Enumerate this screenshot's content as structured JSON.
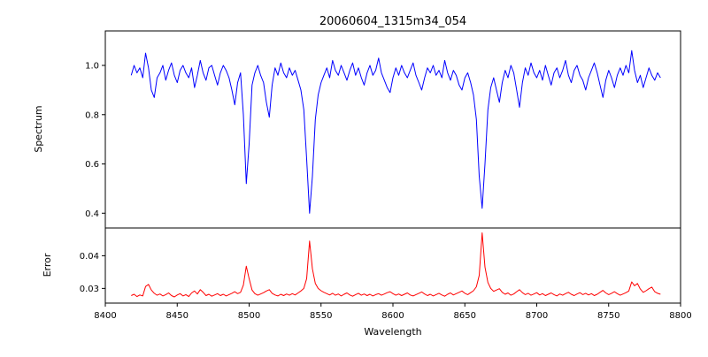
{
  "chart_data": {
    "type": "line",
    "title": "20060604_1315m34_054",
    "xlabel": "Wavelength",
    "grid": false,
    "legend": "none",
    "xlim": [
      8400,
      8800
    ],
    "xticks": [
      8400,
      8450,
      8500,
      8550,
      8600,
      8650,
      8700,
      8750,
      8800
    ],
    "xtick_labels": [
      "8400",
      "8450",
      "8500",
      "8550",
      "8600",
      "8650",
      "8700",
      "8750",
      "8800"
    ],
    "x": [
      8418,
      8420,
      8422,
      8424,
      8426,
      8428,
      8430,
      8432,
      8434,
      8436,
      8438,
      8440,
      8442,
      8444,
      8446,
      8448,
      8450,
      8452,
      8454,
      8456,
      8458,
      8460,
      8462,
      8464,
      8466,
      8468,
      8470,
      8472,
      8474,
      8476,
      8478,
      8480,
      8482,
      8484,
      8486,
      8488,
      8490,
      8492,
      8494,
      8496,
      8498,
      8500,
      8502,
      8504,
      8506,
      8508,
      8510,
      8512,
      8514,
      8516,
      8518,
      8520,
      8522,
      8524,
      8526,
      8528,
      8530,
      8532,
      8534,
      8536,
      8538,
      8540,
      8542,
      8544,
      8546,
      8548,
      8550,
      8552,
      8554,
      8556,
      8558,
      8560,
      8562,
      8564,
      8566,
      8568,
      8570,
      8572,
      8574,
      8576,
      8578,
      8580,
      8582,
      8584,
      8586,
      8588,
      8590,
      8592,
      8594,
      8596,
      8598,
      8600,
      8602,
      8604,
      8606,
      8608,
      8610,
      8612,
      8614,
      8616,
      8618,
      8620,
      8622,
      8624,
      8626,
      8628,
      8630,
      8632,
      8634,
      8636,
      8638,
      8640,
      8642,
      8644,
      8646,
      8648,
      8650,
      8652,
      8654,
      8656,
      8658,
      8660,
      8662,
      8664,
      8666,
      8668,
      8670,
      8672,
      8674,
      8676,
      8678,
      8680,
      8682,
      8684,
      8686,
      8688,
      8690,
      8692,
      8694,
      8696,
      8698,
      8700,
      8702,
      8704,
      8706,
      8708,
      8710,
      8712,
      8714,
      8716,
      8718,
      8720,
      8722,
      8724,
      8726,
      8728,
      8730,
      8732,
      8734,
      8736,
      8738,
      8740,
      8742,
      8744,
      8746,
      8748,
      8750,
      8752,
      8754,
      8756,
      8758,
      8760,
      8762,
      8764,
      8766,
      8768,
      8770,
      8772,
      8774,
      8776,
      8778,
      8780,
      8782,
      8784,
      8786
    ],
    "panels": [
      {
        "name": "spectrum",
        "ylabel": "Spectrum",
        "color": "#0000ff",
        "ylim": [
          0.34,
          1.14
        ],
        "yticks": [
          0.4,
          0.6,
          0.8,
          1.0
        ],
        "ytick_labels": [
          "0.4",
          "0.6",
          "0.8",
          "1.0"
        ],
        "absorption_lines": [
          8498,
          8542,
          8662
        ],
        "values": [
          0.96,
          1.0,
          0.97,
          0.99,
          0.95,
          1.05,
          0.99,
          0.9,
          0.87,
          0.95,
          0.97,
          1.0,
          0.94,
          0.98,
          1.01,
          0.96,
          0.93,
          0.98,
          1.0,
          0.97,
          0.95,
          0.99,
          0.91,
          0.96,
          1.02,
          0.97,
          0.94,
          0.99,
          1.0,
          0.96,
          0.92,
          0.97,
          1.0,
          0.98,
          0.95,
          0.9,
          0.84,
          0.93,
          0.97,
          0.8,
          0.52,
          0.68,
          0.92,
          0.97,
          1.0,
          0.96,
          0.93,
          0.85,
          0.79,
          0.92,
          0.99,
          0.96,
          1.01,
          0.97,
          0.95,
          0.99,
          0.96,
          0.98,
          0.94,
          0.9,
          0.82,
          0.62,
          0.4,
          0.55,
          0.78,
          0.88,
          0.93,
          0.96,
          0.99,
          0.95,
          1.02,
          0.98,
          0.96,
          1.0,
          0.97,
          0.94,
          0.98,
          1.01,
          0.96,
          0.99,
          0.95,
          0.92,
          0.97,
          1.0,
          0.96,
          0.98,
          1.03,
          0.97,
          0.94,
          0.91,
          0.89,
          0.95,
          0.99,
          0.96,
          1.0,
          0.97,
          0.95,
          0.98,
          1.01,
          0.96,
          0.93,
          0.9,
          0.95,
          0.99,
          0.97,
          1.0,
          0.96,
          0.98,
          0.95,
          1.02,
          0.97,
          0.94,
          0.98,
          0.96,
          0.92,
          0.9,
          0.95,
          0.97,
          0.93,
          0.88,
          0.78,
          0.55,
          0.42,
          0.6,
          0.82,
          0.91,
          0.95,
          0.9,
          0.85,
          0.93,
          0.98,
          0.95,
          1.0,
          0.97,
          0.9,
          0.83,
          0.93,
          0.99,
          0.96,
          1.01,
          0.97,
          0.95,
          0.98,
          0.94,
          1.0,
          0.96,
          0.92,
          0.97,
          0.99,
          0.95,
          0.98,
          1.02,
          0.96,
          0.93,
          0.98,
          1.0,
          0.96,
          0.94,
          0.9,
          0.95,
          0.98,
          1.01,
          0.97,
          0.92,
          0.87,
          0.94,
          0.98,
          0.95,
          0.91,
          0.96,
          0.99,
          0.96,
          1.0,
          0.97,
          1.06,
          0.98,
          0.93,
          0.96,
          0.91,
          0.95,
          0.99,
          0.96,
          0.94,
          0.97,
          0.95
        ]
      },
      {
        "name": "error",
        "ylabel": "Error",
        "color": "#ff0000",
        "ylim": [
          0.0255,
          0.0485
        ],
        "yticks": [
          0.03,
          0.04
        ],
        "ytick_labels": [
          "0.03",
          "0.04"
        ],
        "values": [
          0.0278,
          0.0282,
          0.0275,
          0.028,
          0.0277,
          0.0306,
          0.0312,
          0.0295,
          0.0285,
          0.0279,
          0.0283,
          0.0277,
          0.0281,
          0.0286,
          0.0278,
          0.0274,
          0.028,
          0.0284,
          0.0277,
          0.0281,
          0.0275,
          0.0286,
          0.0292,
          0.0283,
          0.0296,
          0.0288,
          0.0278,
          0.0282,
          0.0276,
          0.028,
          0.0284,
          0.0278,
          0.0282,
          0.0277,
          0.0281,
          0.0285,
          0.029,
          0.0284,
          0.0288,
          0.031,
          0.0368,
          0.033,
          0.0295,
          0.0284,
          0.0279,
          0.0283,
          0.0287,
          0.0292,
          0.0296,
          0.0285,
          0.028,
          0.0277,
          0.0282,
          0.0278,
          0.0283,
          0.0279,
          0.0284,
          0.028,
          0.0286,
          0.0292,
          0.03,
          0.033,
          0.0445,
          0.036,
          0.0315,
          0.03,
          0.0293,
          0.0288,
          0.0284,
          0.028,
          0.0285,
          0.0279,
          0.0283,
          0.0277,
          0.0282,
          0.0286,
          0.028,
          0.0276,
          0.0281,
          0.0285,
          0.0279,
          0.0283,
          0.0278,
          0.0282,
          0.0277,
          0.0281,
          0.0284,
          0.0279,
          0.0283,
          0.0287,
          0.029,
          0.0284,
          0.0279,
          0.0283,
          0.0278,
          0.0282,
          0.0286,
          0.028,
          0.0277,
          0.0281,
          0.0285,
          0.0289,
          0.0283,
          0.0278,
          0.0282,
          0.0277,
          0.0281,
          0.0285,
          0.028,
          0.0276,
          0.0282,
          0.0286,
          0.028,
          0.0284,
          0.0288,
          0.0292,
          0.0285,
          0.0281,
          0.0287,
          0.0293,
          0.0305,
          0.034,
          0.047,
          0.0365,
          0.0318,
          0.03,
          0.0291,
          0.0295,
          0.0299,
          0.0288,
          0.0282,
          0.0286,
          0.0279,
          0.0283,
          0.029,
          0.0296,
          0.0287,
          0.0281,
          0.0285,
          0.0279,
          0.0283,
          0.0287,
          0.028,
          0.0284,
          0.0278,
          0.0282,
          0.0286,
          0.0281,
          0.0277,
          0.0283,
          0.0279,
          0.0284,
          0.0288,
          0.0282,
          0.0278,
          0.0283,
          0.0287,
          0.0281,
          0.0285,
          0.028,
          0.0284,
          0.0278,
          0.0282,
          0.0288,
          0.0294,
          0.0286,
          0.0281,
          0.0285,
          0.029,
          0.0284,
          0.0279,
          0.0283,
          0.0287,
          0.0292,
          0.032,
          0.0308,
          0.0315,
          0.0298,
          0.0288,
          0.0293,
          0.0299,
          0.0304,
          0.029,
          0.0285,
          0.0282
        ]
      }
    ]
  }
}
